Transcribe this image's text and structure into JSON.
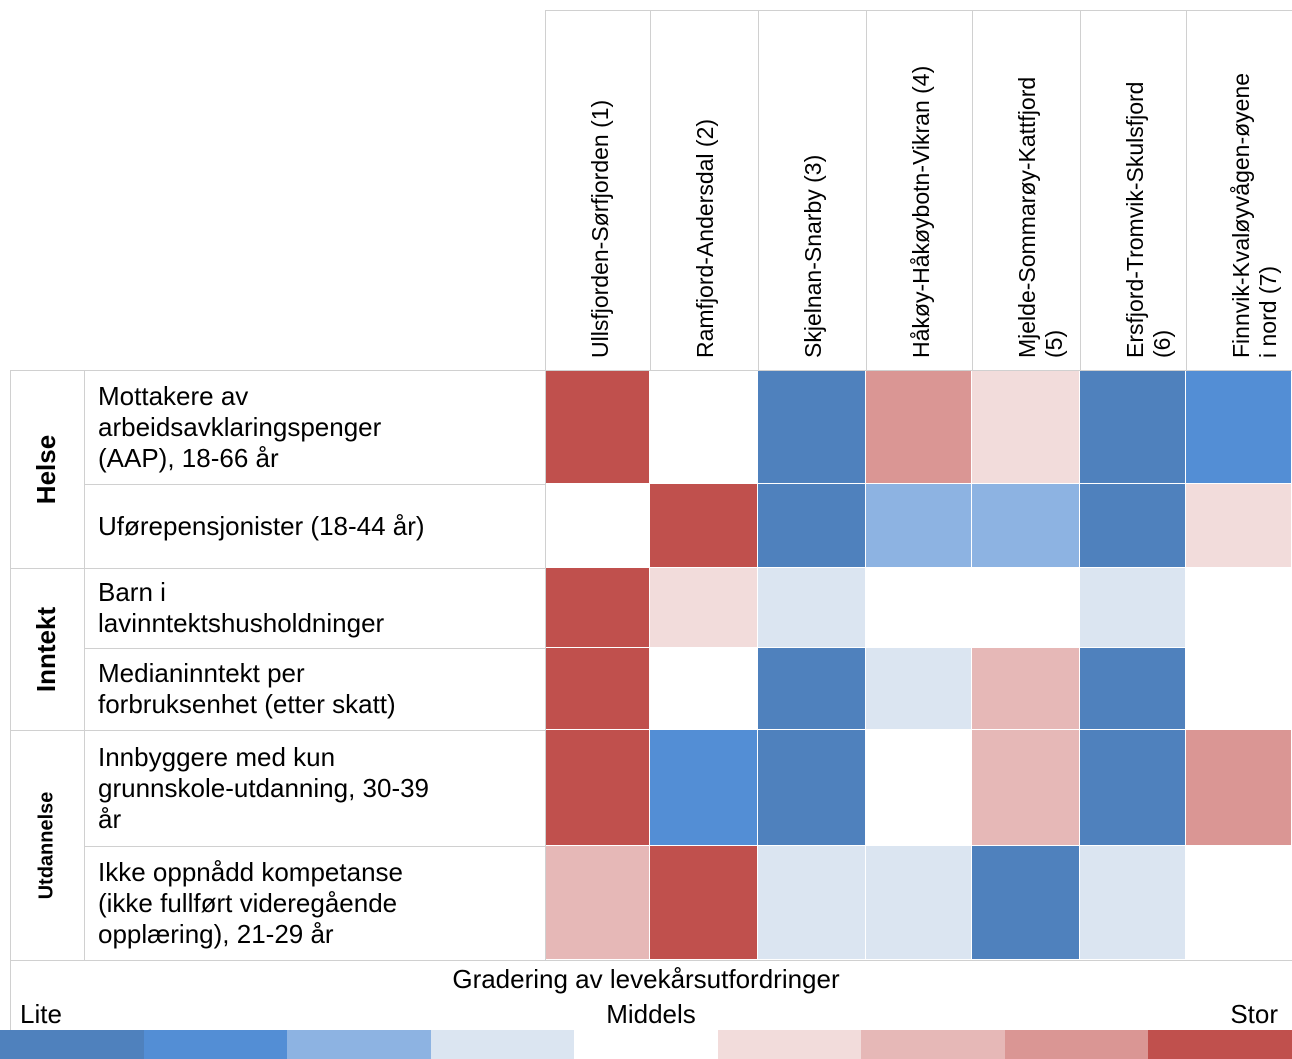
{
  "chart_data": {
    "type": "heatmap",
    "colors": [
      "#4f81bd",
      "#538ed5",
      "#8db3e2",
      "#dbe5f1",
      "#ffffff",
      "#f2dcdb",
      "#e6b8b7",
      "#da9694",
      "#c0504d"
    ],
    "columns": [
      "Ullsfjorden-Sørfjorden (1)",
      "Ramfjord-Andersdal (2)",
      "Skjelnan-Snarby (3)",
      "Håkøy-Håkøybotn-Vikran (4)",
      [
        "Mjelde-Sommarøy-Kattfjord",
        "(5)"
      ],
      [
        "Ersfjord-Tromvik-Skulsfjord",
        "(6)"
      ],
      [
        "Finnvik-Kvaløyvågen-øyene",
        "i nord (7)"
      ]
    ],
    "groups": [
      {
        "name": "Helse",
        "rows": [
          {
            "label": [
              "Mottakere av",
              "arbeidsavklaringspenger",
              "(AAP), 18-66 år"
            ],
            "levels": [
              9,
              5,
              1,
              8,
              6,
              1,
              2
            ]
          },
          {
            "label": [
              "Uførepensjonister (18-44 år)"
            ],
            "levels": [
              5,
              9,
              1,
              3,
              3,
              1,
              6
            ]
          }
        ]
      },
      {
        "name": "Inntekt",
        "rows": [
          {
            "label": [
              "Barn i",
              "lavinntektshusholdninger"
            ],
            "levels": [
              9,
              6,
              4,
              5,
              5,
              4,
              5
            ]
          },
          {
            "label": [
              "Medianinntekt per",
              "forbruksenhet (etter skatt)"
            ],
            "levels": [
              9,
              5,
              1,
              4,
              7,
              1,
              5
            ]
          }
        ]
      },
      {
        "name": "Utdannelse",
        "rows": [
          {
            "label": [
              "Innbyggere med kun",
              "grunnskole-utdanning, 30-39",
              "år"
            ],
            "levels": [
              9,
              2,
              1,
              5,
              7,
              1,
              8
            ]
          },
          {
            "label": [
              "Ikke oppnådd kompetanse",
              "(ikke fullført videregående",
              "opplæring), 21-29 år"
            ],
            "levels": [
              7,
              9,
              4,
              4,
              1,
              4,
              5
            ]
          }
        ]
      }
    ],
    "legend": {
      "title": "Gradering av levekårsutfordringer",
      "low": "Lite",
      "mid": "Middels",
      "high": "Stor",
      "levels": [
        1,
        2,
        3,
        4,
        5,
        6,
        7,
        8,
        9
      ]
    }
  }
}
